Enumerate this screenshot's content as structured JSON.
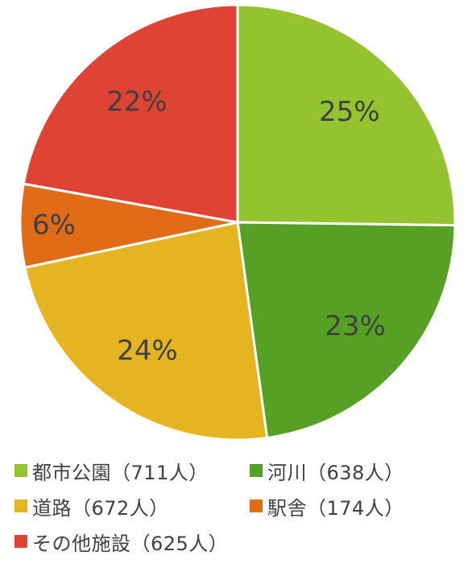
{
  "chart_data": {
    "type": "pie",
    "title": "",
    "slices": [
      {
        "label": "都市公園（711人）",
        "value": 711,
        "percent_label": "25%",
        "color": "#93C32E"
      },
      {
        "label": "河川（638人）",
        "value": 638,
        "percent_label": "23%",
        "color": "#56A024"
      },
      {
        "label": "道路（672人）",
        "value": 672,
        "percent_label": "24%",
        "color": "#E5B521"
      },
      {
        "label": "駅舎（174人）",
        "value": 174,
        "percent_label": "6%",
        "color": "#E26B17"
      },
      {
        "label": "その他施設（625人）",
        "value": 625,
        "percent_label": "22%",
        "color": "#DF4333"
      }
    ],
    "legend_position": "bottom"
  }
}
